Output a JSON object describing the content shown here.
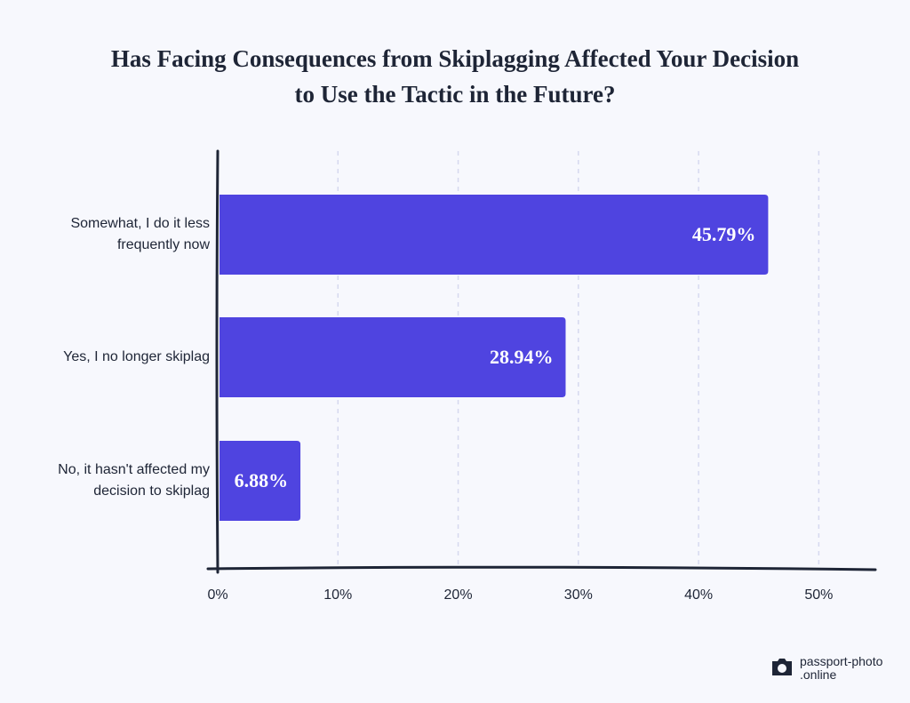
{
  "chart_data": {
    "type": "hbar",
    "title": "Has Facing Consequences from Skiplagging Affected Your Decision to Use the Tactic in the Future?",
    "categories": [
      "Somewhat, I do it less frequently now",
      "Yes, I no longer skiplag",
      "No, it hasn't affected my decision to skiplag"
    ],
    "values": [
      45.79,
      28.94,
      6.88
    ],
    "value_labels": [
      "45.79%",
      "28.94%",
      "6.88%"
    ],
    "color": "#4f44e0",
    "xlim": [
      0,
      55
    ],
    "xticks": [
      {
        "value": 0,
        "label": "0%"
      },
      {
        "value": 10,
        "label": "10%"
      },
      {
        "value": 20,
        "label": "20%"
      },
      {
        "value": 30,
        "label": "30%"
      },
      {
        "value": 40,
        "label": "40%"
      },
      {
        "value": 50,
        "label": "50%"
      }
    ],
    "grid": true
  },
  "logo": {
    "lines": [
      "passport-photo",
      ".online"
    ]
  }
}
